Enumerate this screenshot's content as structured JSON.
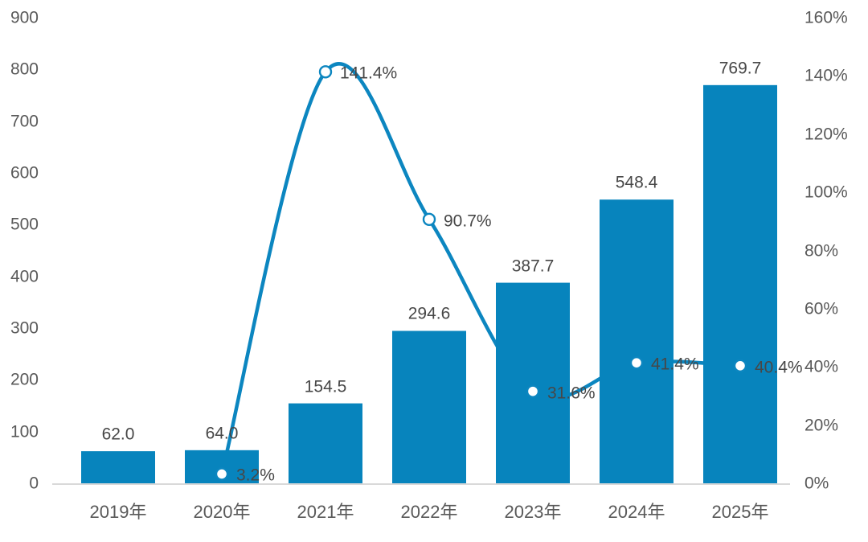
{
  "chart_data": {
    "type": "combo-bar-line",
    "title": "",
    "categories": [
      "2019年",
      "2020年",
      "2021年",
      "2022年",
      "2023年",
      "2024年",
      "2025年"
    ],
    "series": [
      {
        "name": "annual-value",
        "type": "bar",
        "axis": "left",
        "values": [
          62.0,
          64.0,
          154.5,
          294.6,
          387.7,
          548.4,
          769.7
        ],
        "labels": [
          "62.0",
          "64.0",
          "154.5",
          "294.6",
          "387.7",
          "548.4",
          "769.7"
        ]
      },
      {
        "name": "growth-rate",
        "type": "line",
        "axis": "right",
        "smooth": true,
        "values": [
          null,
          3.2,
          141.4,
          90.7,
          31.6,
          41.4,
          40.4
        ],
        "labels": [
          null,
          "3.2%",
          "141.4%",
          "90.7%",
          "31.6%",
          "41.4%",
          "40.4%"
        ]
      }
    ],
    "left_axis": {
      "range": [
        0,
        900
      ],
      "tick_step": 100,
      "ticks": [
        "900",
        "800",
        "700",
        "600",
        "500",
        "400",
        "300",
        "200",
        "100",
        "0"
      ]
    },
    "right_axis": {
      "range": [
        0,
        160
      ],
      "tick_step": 20,
      "ticks": [
        "160%",
        "140%",
        "120%",
        "100%",
        "80%",
        "60%",
        "40%",
        "20%",
        "0%"
      ]
    },
    "grid": false,
    "legend": false,
    "colors": {
      "bar": "#0784bd",
      "line": "#0c86c0",
      "marker_fill": "#ffffff",
      "axis_line": "#d9d9d9",
      "axis_text": "#595959",
      "data_label": "#474747"
    }
  }
}
